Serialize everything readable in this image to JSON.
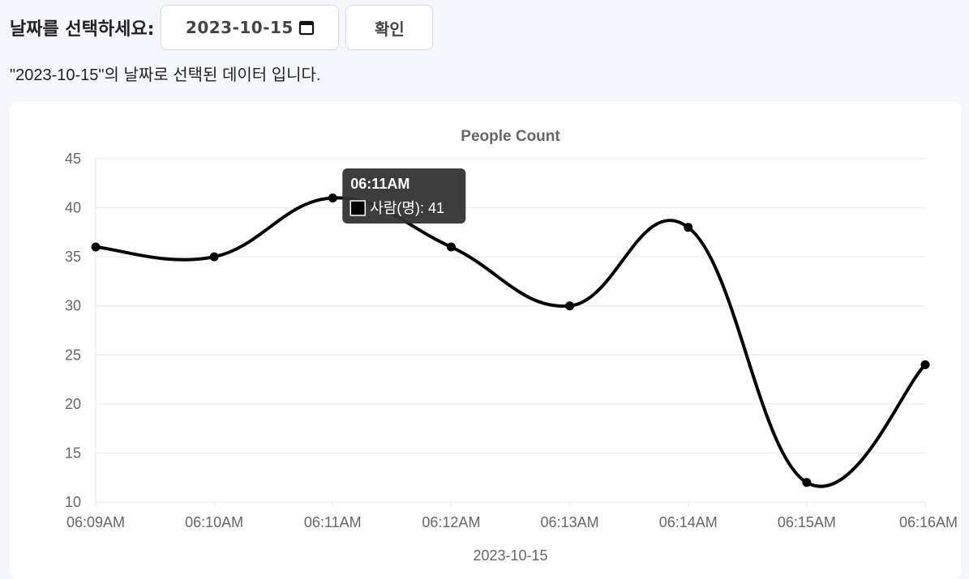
{
  "controls": {
    "prompt_label": "날짜를 선택하세요:",
    "date_value": "2023-10-15",
    "calendar_icon": "calendar-icon",
    "confirm_label": "확인"
  },
  "status_text": "\"2023-10-15\"의 날짜로 선택된 데이터 입니다.",
  "colors": {
    "line": "#000000",
    "grid": "#e6e6e6",
    "text": "#666666",
    "tooltip_bg": "#333333"
  },
  "chart_data": {
    "type": "line",
    "title": "People Count",
    "xlabel": "2023-10-15",
    "ylabel": "",
    "categories": [
      "06:09AM",
      "06:10AM",
      "06:11AM",
      "06:12AM",
      "06:13AM",
      "06:14AM",
      "06:15AM",
      "06:16AM"
    ],
    "series": [
      {
        "name": "사람(명)",
        "values": [
          36,
          35,
          41,
          36,
          30,
          38,
          12,
          24
        ]
      }
    ],
    "ylim": [
      10,
      45
    ],
    "yticks": [
      10,
      15,
      20,
      25,
      30,
      35,
      40,
      45
    ],
    "grid": true,
    "tooltip": {
      "title": "06:11AM",
      "label": "사람(명): 41"
    }
  }
}
